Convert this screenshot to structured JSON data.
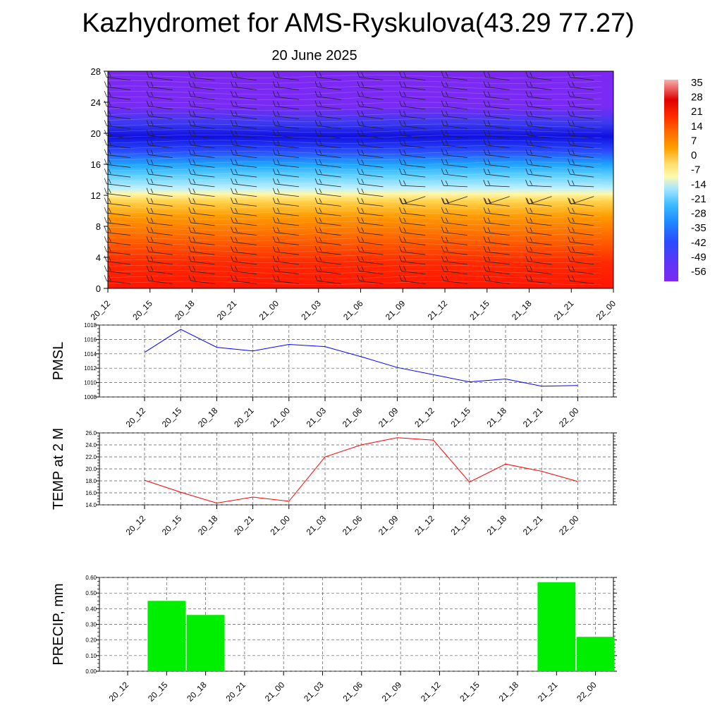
{
  "title": "Kazhydromet for AMS-Ryskulova(43.29 77.27)",
  "subtitle": "20 June 2025",
  "chart_data": [
    {
      "type": "heatmap",
      "name": "vertical-section",
      "xlabel": "",
      "ylabel": "",
      "ylim": [
        0,
        28
      ],
      "yticks": [
        "0",
        "4",
        "8",
        "12",
        "16",
        "20",
        "24",
        "28"
      ],
      "categories": [
        "20_12",
        "20_15",
        "20_18",
        "20_21",
        "21_00",
        "21_03",
        "21_06",
        "21_09",
        "21_12",
        "21_15",
        "21_18",
        "21_21",
        "22_00"
      ],
      "colorbar": {
        "labels": [
          "35",
          "28",
          "21",
          "14",
          "7",
          "0",
          "-7",
          "-14",
          "-21",
          "-28",
          "-35",
          "-42",
          "-49",
          "-56"
        ],
        "values": [
          35,
          28,
          21,
          14,
          7,
          0,
          -7,
          -14,
          -21,
          -28,
          -35,
          -42,
          -49,
          -56
        ]
      },
      "description_layers": [
        "temperature shading",
        "wind barbs"
      ],
      "colors": {
        "warm": "#ff1a00",
        "orange": "#ff9900",
        "yellow": "#fff59a",
        "cyan": "#33c4ff",
        "blue": "#1a1aee",
        "violet": "#7a28f0"
      }
    },
    {
      "type": "line",
      "name": "pmsl",
      "ylabel": "PMSL",
      "ylim": [
        1008,
        1018
      ],
      "yticks": [
        "1008",
        "1010",
        "1012",
        "1014",
        "1016",
        "1018"
      ],
      "categories": [
        "20_12",
        "20_15",
        "20_18",
        "20_21",
        "21_00",
        "21_03",
        "21_06",
        "21_09",
        "21_12",
        "21_15",
        "21_18",
        "21_21",
        "22_00"
      ],
      "values": [
        1014.2,
        1017.4,
        1014.9,
        1014.4,
        1015.3,
        1015.0,
        1013.6,
        1012.1,
        1011.1,
        1010.1,
        1010.5,
        1009.5,
        1009.6
      ],
      "color": "#0000ff",
      "grid": true
    },
    {
      "type": "line",
      "name": "temperature",
      "ylabel": "TEMP at 2 M",
      "ylim": [
        14,
        26
      ],
      "yticks": [
        "14.0",
        "16.0",
        "18.0",
        "20.0",
        "22.0",
        "24.0",
        "26.0"
      ],
      "categories": [
        "20_12",
        "20_15",
        "20_18",
        "20_21",
        "21_00",
        "21_03",
        "21_06",
        "21_09",
        "21_12",
        "21_15",
        "21_18",
        "21_21",
        "22_00"
      ],
      "values": [
        18.1,
        16.1,
        14.3,
        15.3,
        14.6,
        22.0,
        24.0,
        25.2,
        24.8,
        17.8,
        20.8,
        19.6,
        17.9
      ],
      "color": "#ff0000",
      "grid": true
    },
    {
      "type": "bar",
      "name": "precipitation",
      "ylabel": "PRECIP, mm",
      "ylim": [
        0,
        0.6
      ],
      "yticks": [
        "0.00",
        "0.10",
        "0.20",
        "0.30",
        "0.40",
        "0.50",
        "0.60"
      ],
      "categories": [
        "20_12",
        "20_15",
        "20_18",
        "20_21",
        "21_00",
        "21_03",
        "21_06",
        "21_09",
        "21_12",
        "21_15",
        "21_18",
        "21_21",
        "22_00"
      ],
      "values": [
        0,
        0.45,
        0.36,
        0,
        0,
        0,
        0,
        0,
        0,
        0,
        0,
        0.57,
        0.22
      ],
      "color": "#00ee00",
      "grid": true
    }
  ]
}
